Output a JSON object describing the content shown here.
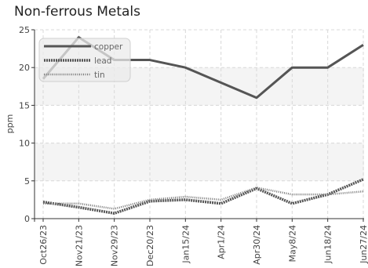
{
  "chart_data": {
    "type": "line",
    "title": "Non-ferrous Metals",
    "xlabel": "",
    "ylabel": "ppm",
    "ylim": [
      0,
      25
    ],
    "yticks": [
      0,
      5,
      10,
      15,
      20,
      25
    ],
    "categories": [
      "Oct26/23",
      "Nov21/23",
      "Nov29/23",
      "Dec20/23",
      "Jan15/24",
      "Apr1/24",
      "Apr30/24",
      "May8/24",
      "Jun18/24",
      "Jun27/24"
    ],
    "series": [
      {
        "name": "copper",
        "style": "solid",
        "color": "#555555",
        "values": [
          18.5,
          24,
          21,
          21,
          20,
          18,
          16,
          20,
          20,
          23
        ]
      },
      {
        "name": "lead",
        "style": "dash",
        "color": "#555555",
        "values": [
          2.2,
          1.5,
          0.7,
          2.3,
          2.5,
          2.0,
          4.0,
          2.0,
          3.2,
          5.2
        ]
      },
      {
        "name": "tin",
        "style": "dot",
        "color": "#777777",
        "values": [
          2.0,
          2.0,
          1.3,
          2.5,
          2.9,
          2.5,
          4.1,
          3.2,
          3.2,
          3.6
        ]
      }
    ],
    "grid": true,
    "legend_position": "top-left"
  }
}
